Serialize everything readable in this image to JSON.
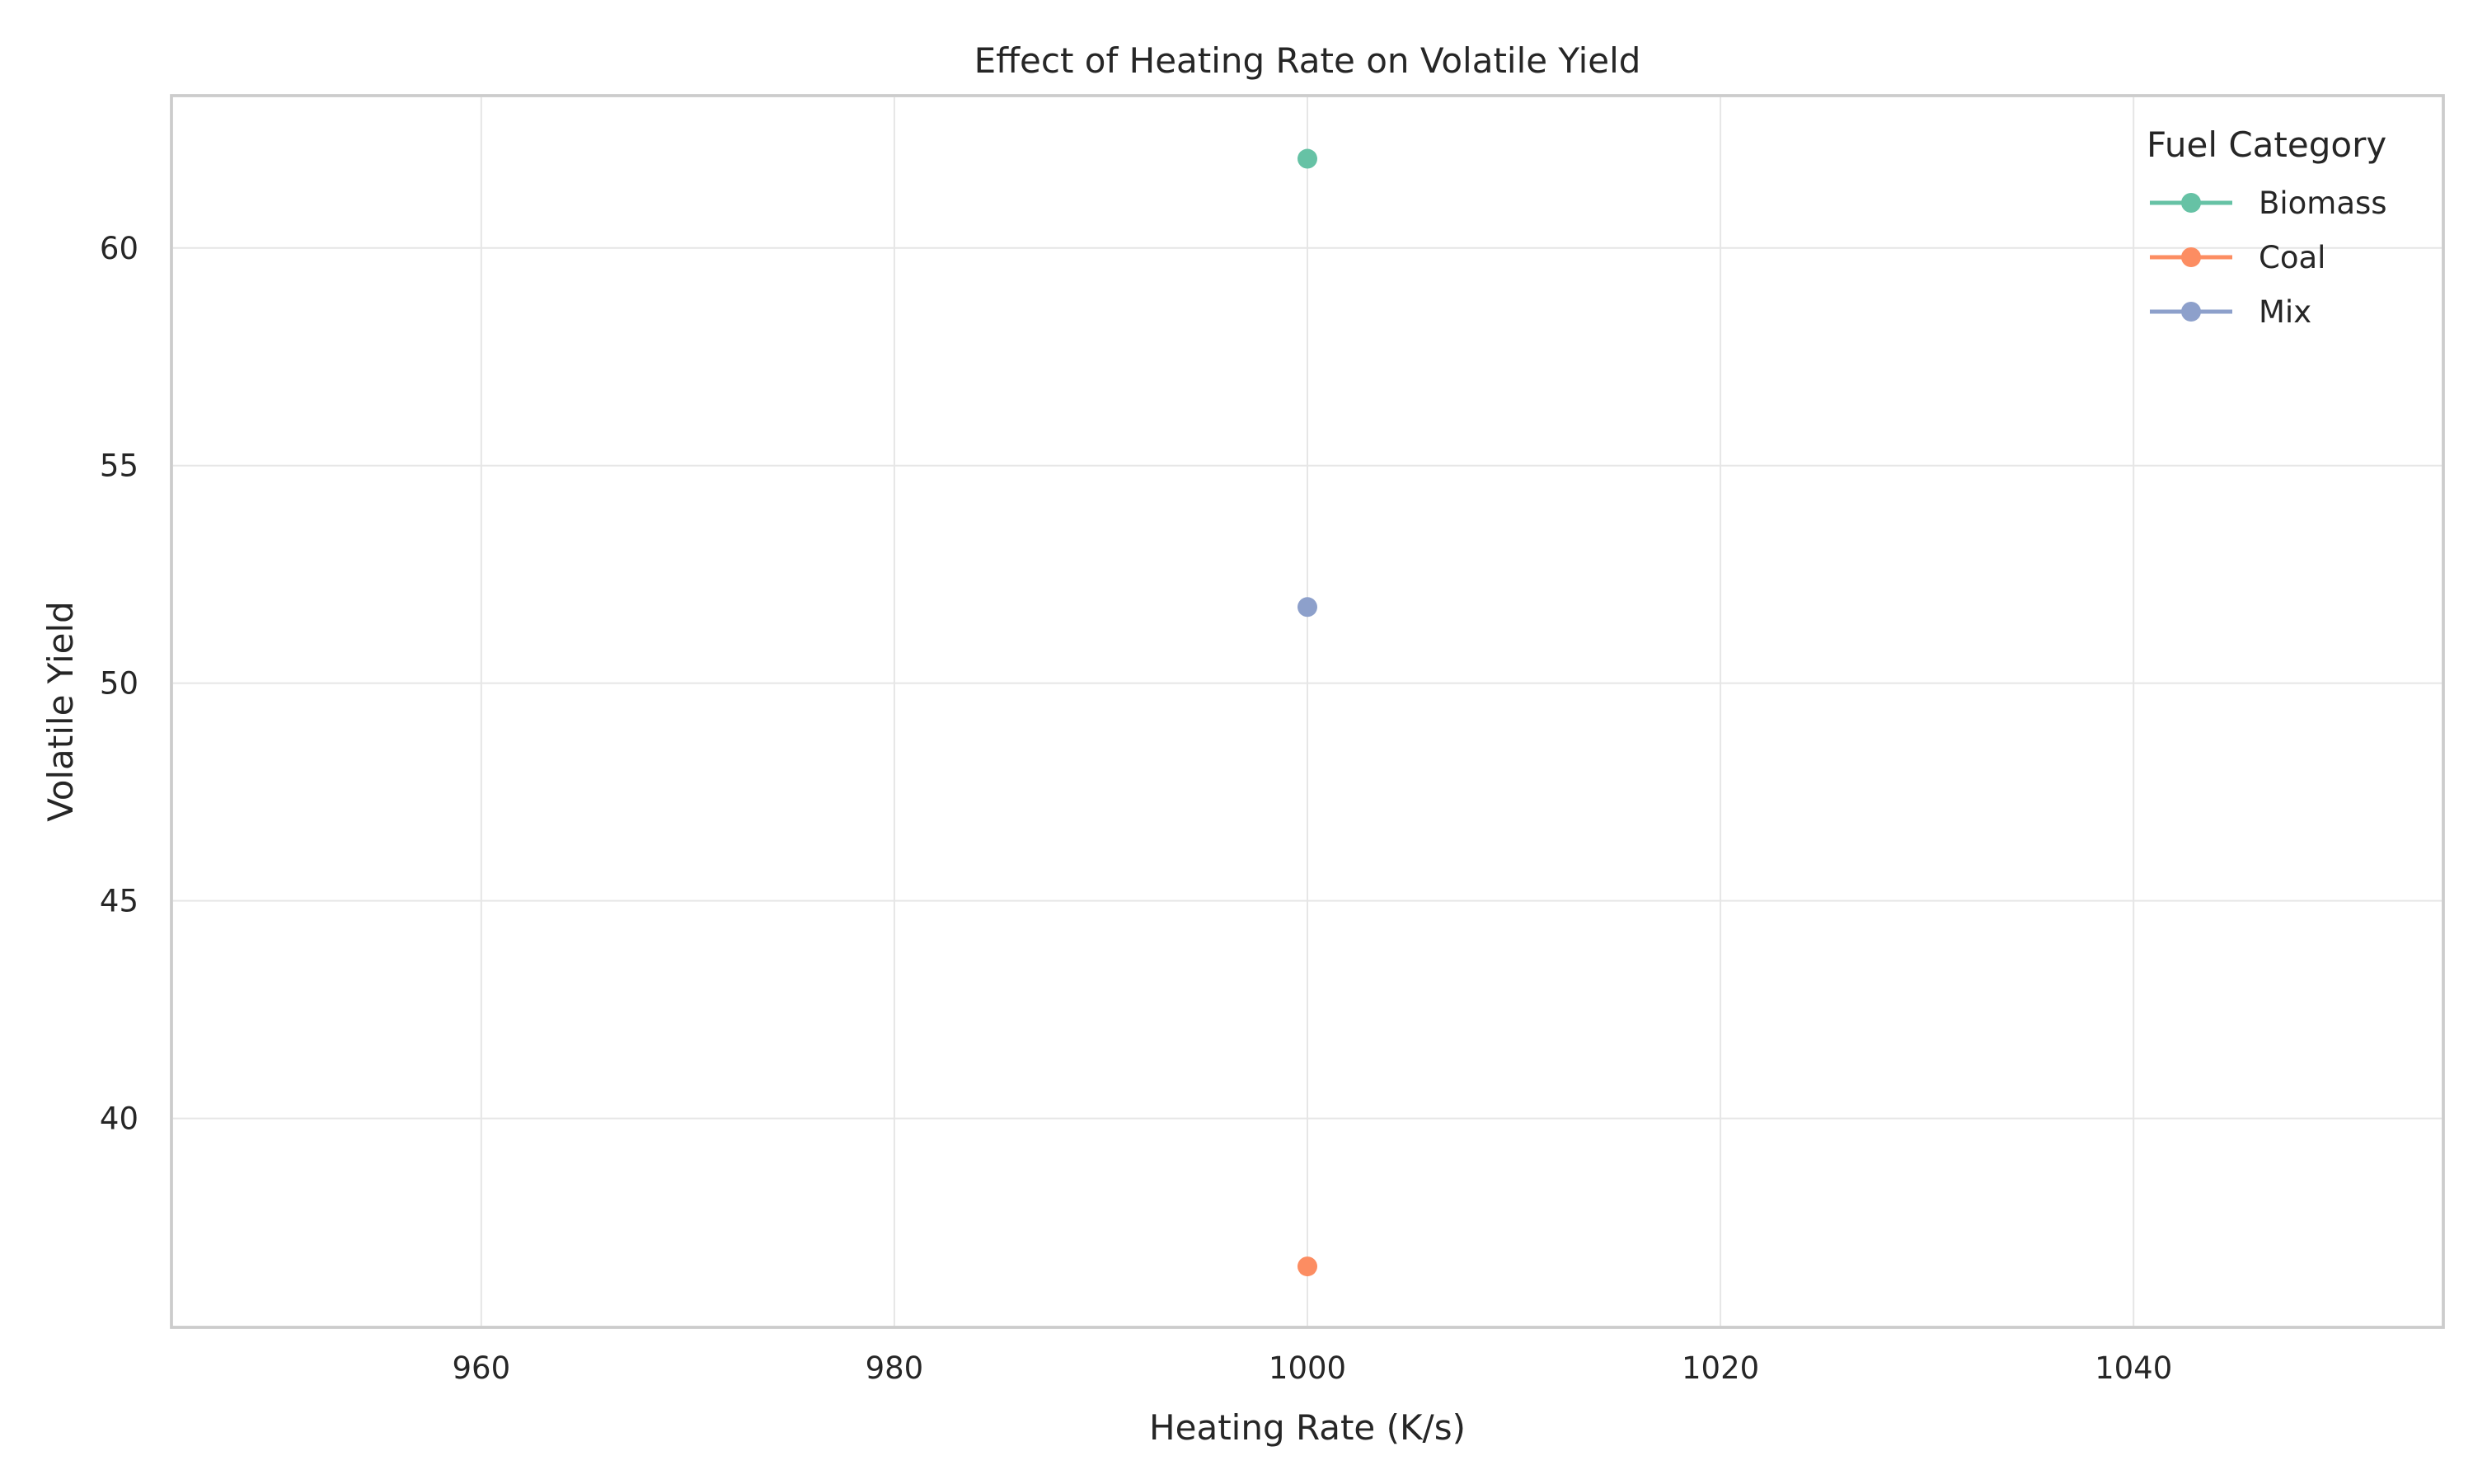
{
  "chart_data": {
    "type": "line",
    "title": "Effect of Heating Rate on Volatile Yield",
    "xlabel": "Heating Rate (K/s)",
    "ylabel": "Volatile Yield",
    "xlim": [
      945,
      1055
    ],
    "ylim": [
      35.2,
      63.5
    ],
    "xticks": [
      960,
      980,
      1000,
      1020,
      1040
    ],
    "yticks": [
      40,
      45,
      50,
      55,
      60
    ],
    "grid": true,
    "legend": {
      "title": "Fuel Category",
      "placement": "top-right"
    },
    "series": [
      {
        "name": "Biomass",
        "color": "#66c2a5",
        "x": [
          1000
        ],
        "y": [
          62.05
        ]
      },
      {
        "name": "Coal",
        "color": "#fc8d62",
        "x": [
          1000
        ],
        "y": [
          36.6
        ]
      },
      {
        "name": "Mix",
        "color": "#8da0cb",
        "x": [
          1000
        ],
        "y": [
          51.75
        ]
      }
    ]
  }
}
